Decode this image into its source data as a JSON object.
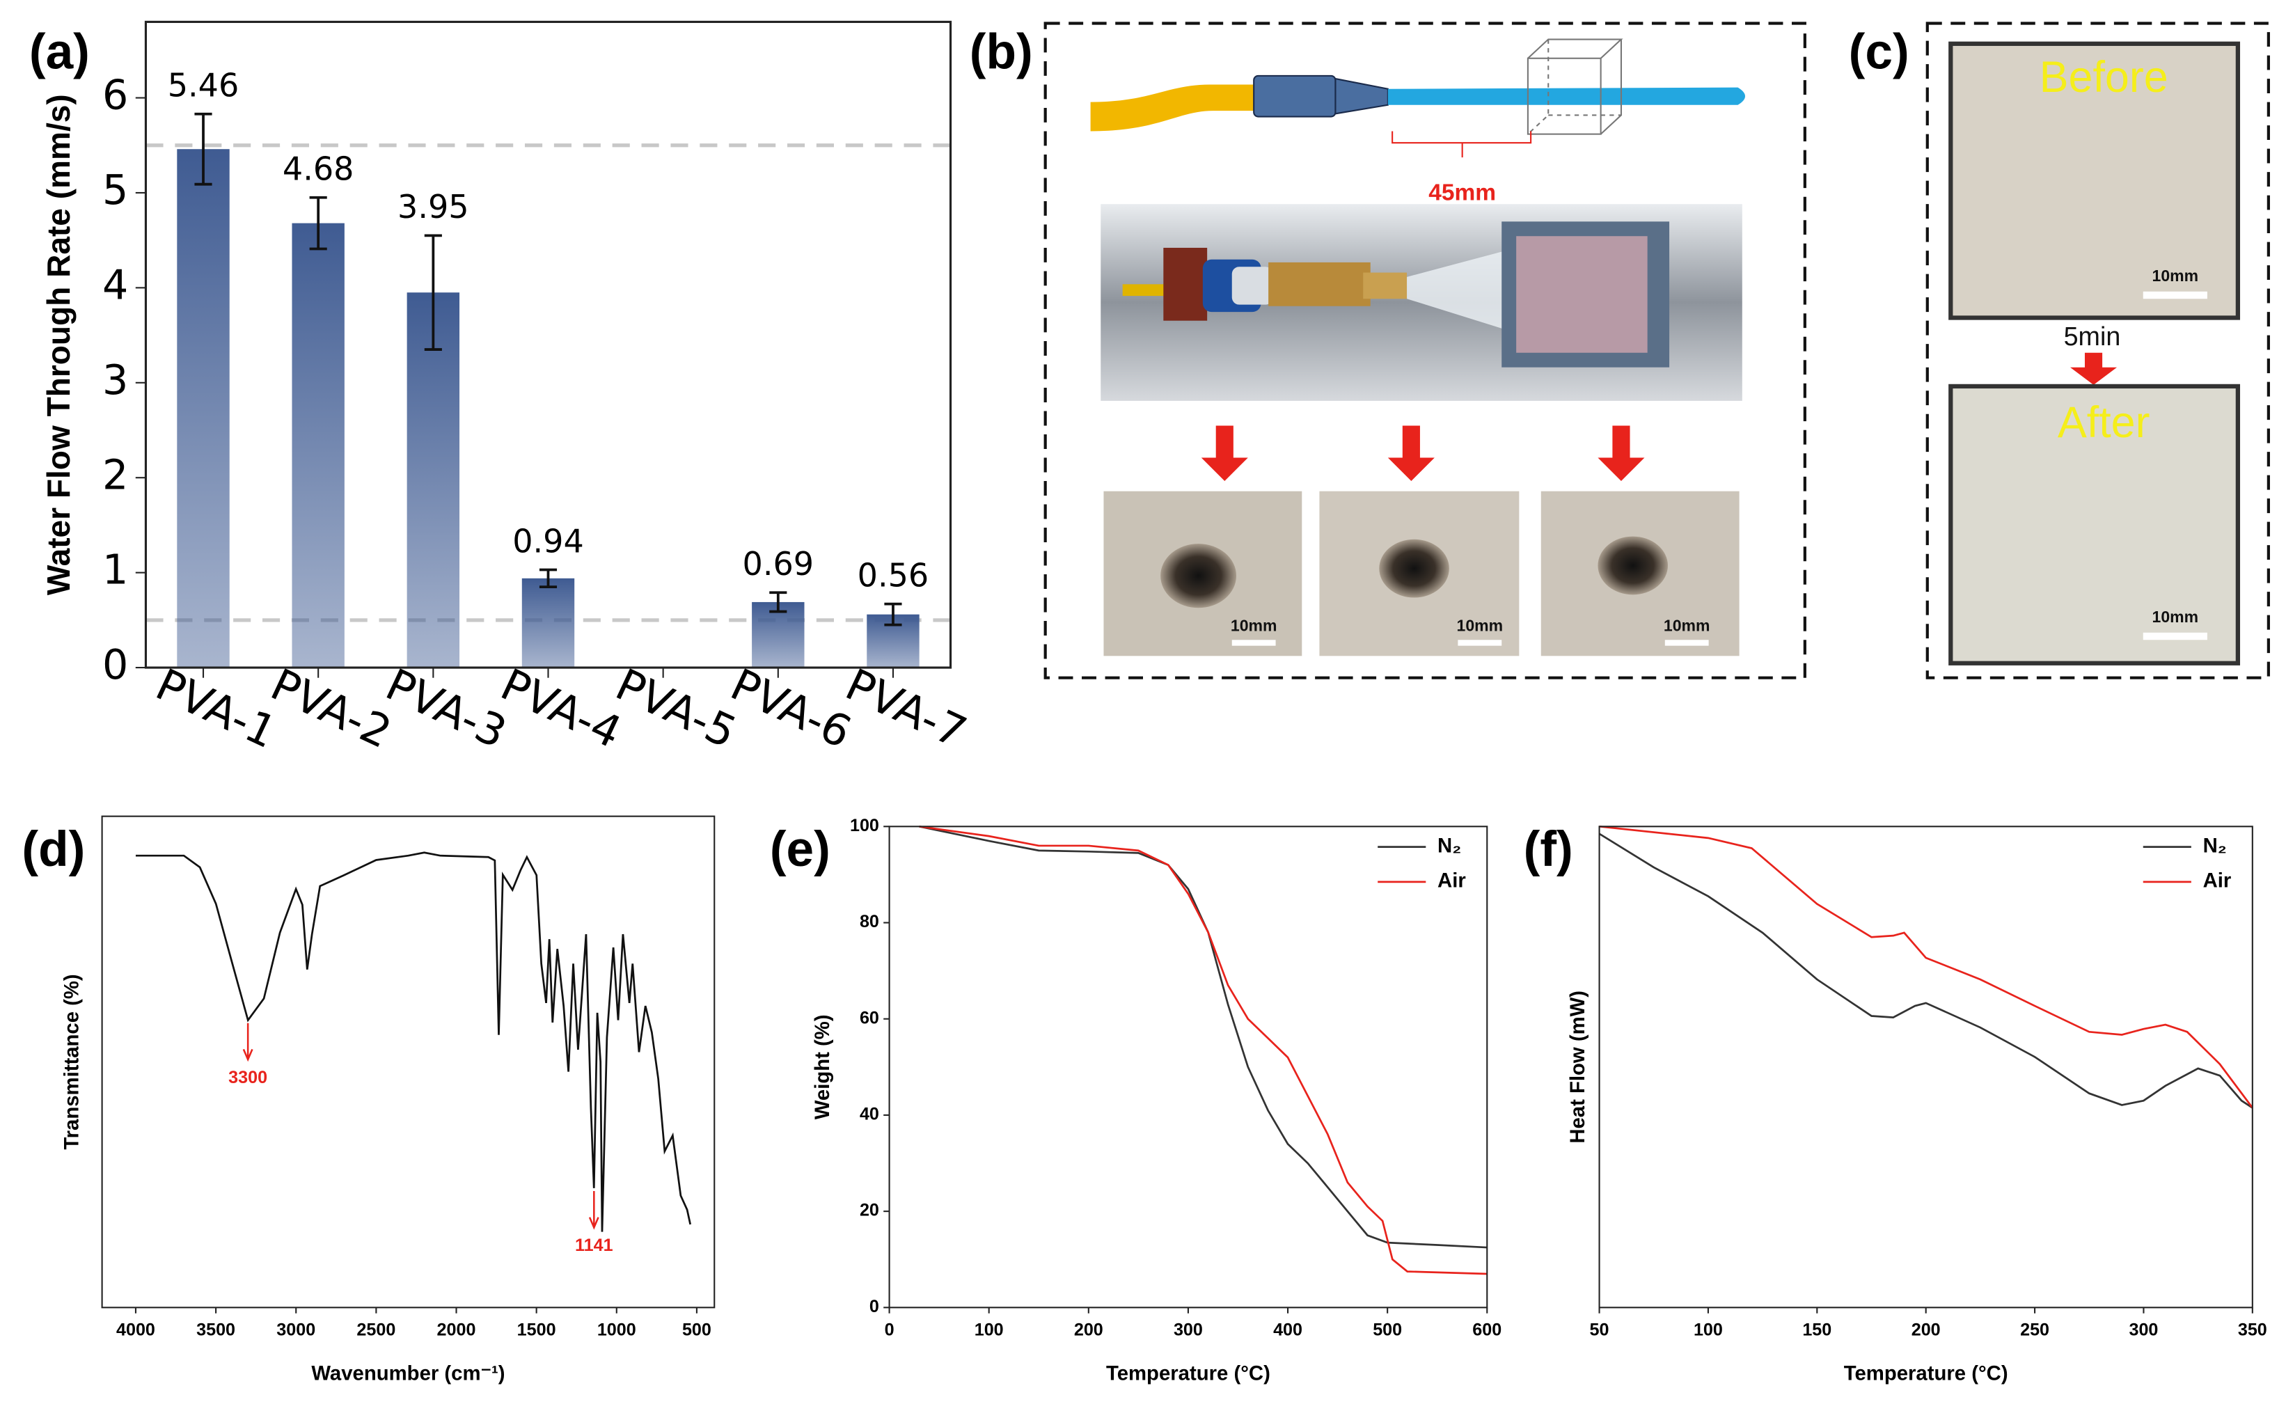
{
  "chart_data": [
    {
      "type": "bar",
      "panel_label": "(a)",
      "y_label": "Water Flow Through Rate (mm/s)",
      "categories": [
        "PVA-1",
        "PVA-2",
        "PVA-3",
        "PVA-4",
        "PVA-5",
        "PVA-6",
        "PVA-7"
      ],
      "values": [
        5.46,
        4.68,
        3.95,
        0.94,
        null,
        0.69,
        0.56
      ],
      "errors": [
        0.37,
        0.27,
        0.6,
        0.09,
        null,
        0.1,
        0.11
      ],
      "color": "#3f5b92",
      "ylim": [
        0,
        6.8
      ],
      "yticks": [
        0,
        1,
        2,
        3,
        4,
        5,
        6
      ],
      "reference_lines": [
        5.5,
        0.5
      ]
    },
    {
      "type": "line",
      "panel_label": "(d)",
      "x_label": "Wavenumber (cm⁻¹)",
      "y_label": "Transmittance (%)",
      "x": [
        4000,
        3700,
        3600,
        3500,
        3400,
        3300,
        3200,
        3100,
        3000,
        2960,
        2930,
        2900,
        2850,
        2700,
        2500,
        2300,
        2200,
        2100,
        1800,
        1760,
        1735,
        1710,
        1650,
        1600,
        1560,
        1500,
        1470,
        1440,
        1420,
        1400,
        1370,
        1330,
        1300,
        1270,
        1240,
        1190,
        1160,
        1141,
        1120,
        1100,
        1090,
        1060,
        1020,
        990,
        960,
        920,
        900,
        860,
        820,
        780,
        740,
        700,
        650,
        600,
        560,
        540
      ],
      "values": [
        92.0,
        92.0,
        89.6,
        82.2,
        70.3,
        58.5,
        62.9,
        76.3,
        85.2,
        82,
        68.8,
        76,
        85.8,
        88,
        91.1,
        92,
        92.6,
        92,
        91.7,
        91,
        55.5,
        88.1,
        85,
        89,
        91.7,
        88,
        70,
        62,
        75,
        58,
        73,
        61.4,
        48,
        70,
        52.5,
        76,
        40.7,
        24.3,
        60,
        50,
        15.4,
        55,
        73.3,
        58.5,
        76,
        62,
        70,
        52,
        61.4,
        56,
        46.6,
        31.8,
        35,
        22.8,
        19.9,
        16.9
      ],
      "color": "#111111",
      "xlim": [
        4210,
        390
      ],
      "xticks": [
        4000,
        3500,
        3000,
        2500,
        2000,
        1500,
        1000,
        500
      ],
      "ylim": [
        0,
        100
      ],
      "annotations": [
        {
          "text": "3300",
          "x": 3300
        },
        {
          "text": "1141",
          "x": 1141
        }
      ],
      "annotation_color": "#e8231c"
    },
    {
      "type": "line",
      "panel_label": "(e)",
      "x_label": "Temperature (°C)",
      "y_label": "Weight (%)",
      "xlim": [
        0,
        600
      ],
      "xticks": [
        0,
        100,
        200,
        300,
        400,
        500,
        600
      ],
      "ylim": [
        0,
        100
      ],
      "yticks": [
        0,
        20,
        40,
        60,
        80,
        100
      ],
      "legend": "upper right",
      "series": [
        {
          "name": "N₂",
          "color": "#333333",
          "x": [
            30,
            100,
            150,
            200,
            250,
            280,
            300,
            320,
            340,
            360,
            380,
            400,
            420,
            440,
            460,
            480,
            500,
            550,
            600
          ],
          "values": [
            100,
            97,
            95,
            94.8,
            94.5,
            92,
            87,
            78,
            63,
            50,
            41,
            34,
            30,
            25,
            20,
            15,
            13.5,
            13,
            12.5
          ]
        },
        {
          "name": "Air",
          "color": "#e8231c",
          "x": [
            30,
            100,
            150,
            200,
            250,
            280,
            300,
            320,
            340,
            360,
            380,
            400,
            420,
            440,
            460,
            480,
            495,
            505,
            520,
            600
          ],
          "values": [
            100,
            98,
            96,
            96,
            95,
            92,
            86,
            78,
            67,
            60,
            56,
            52,
            44,
            36,
            26,
            21,
            18,
            10,
            7.5,
            7
          ]
        }
      ]
    },
    {
      "type": "line",
      "panel_label": "(f)",
      "x_label": "Temperature (°C)",
      "y_label": "Heat Flow (mW)",
      "xlim": [
        50,
        350
      ],
      "xticks": [
        50,
        100,
        150,
        200,
        250,
        300,
        350
      ],
      "ylim": [
        0,
        100
      ],
      "legend": "upper right",
      "series": [
        {
          "name": "N₂",
          "color": "#333333",
          "x": [
            50,
            75,
            100,
            125,
            150,
            175,
            185,
            195,
            200,
            225,
            250,
            275,
            290,
            300,
            310,
            325,
            335,
            345,
            350
          ],
          "values": [
            98.5,
            91.5,
            85.5,
            77.9,
            68.2,
            60.6,
            60.3,
            62.7,
            63.3,
            58.2,
            52.1,
            44.5,
            42.1,
            43,
            46.1,
            49.7,
            48.2,
            43,
            41.5
          ]
        },
        {
          "name": "Air",
          "color": "#e8231c",
          "x": [
            50,
            100,
            120,
            150,
            175,
            185,
            190,
            200,
            225,
            250,
            275,
            290,
            300,
            310,
            320,
            335,
            350
          ],
          "values": [
            100,
            97.6,
            95.5,
            83.9,
            77,
            77.3,
            77.9,
            72.7,
            68.2,
            62.7,
            57.3,
            56.7,
            57.9,
            58.8,
            57.3,
            50.6,
            41.5
          ]
        }
      ]
    }
  ],
  "panel_b": {
    "label": "(b)",
    "distance": "45mm",
    "scale_bars": [
      "10mm",
      "10mm",
      "10mm"
    ]
  },
  "panel_c": {
    "label": "(c)",
    "before": "Before",
    "after": "After",
    "time": "5min",
    "scale_bars": [
      "10mm",
      "10mm"
    ]
  }
}
